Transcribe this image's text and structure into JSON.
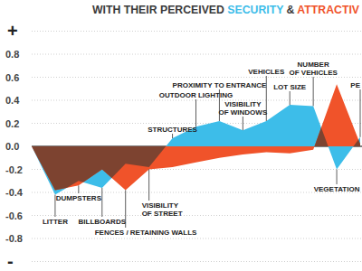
{
  "chart_data": {
    "type": "area",
    "title": "WITH THEIR PERCEIVED SECURITY & ATTRACTIV",
    "categories": [
      null,
      "LITTER",
      "DUMPSTERS",
      "BILLBOARDS",
      "FENCES / RETAINING WALLS",
      "VISIBILITY OF STREET",
      "STRUCTURES",
      "OUTDOOR LIGHTING",
      "PROXIMITY TO ENTRANCE",
      "VISIBILITY OF WINDOWS",
      "VEHICLES",
      "LOT SIZE",
      "NUMBER OF VEHICLES",
      "VEGETATION",
      "PE"
    ],
    "series": [
      {
        "name": "SECURITY",
        "color": "#3dbde9",
        "values": [
          0,
          -0.42,
          -0.3,
          -0.36,
          -0.15,
          -0.18,
          0.07,
          0.17,
          0.22,
          0.14,
          0.22,
          0.36,
          0.35,
          -0.2,
          0.08
        ]
      },
      {
        "name": "ATTRACTIV",
        "color": "#f0532a",
        "values": [
          0,
          -0.38,
          -0.34,
          -0.2,
          -0.38,
          -0.2,
          -0.18,
          -0.14,
          -0.1,
          -0.07,
          -0.05,
          -0.06,
          -0.03,
          0.54,
          0.02
        ]
      }
    ],
    "ylim": [
      -1,
      1
    ],
    "yticks": [
      {
        "value": 1,
        "label": "+"
      },
      0.8,
      0.6,
      0.4,
      0.2,
      {
        "value": 0,
        "label": "0.0"
      },
      -0.2,
      -0.4,
      -0.6,
      -0.8,
      {
        "value": -1,
        "label": "-"
      }
    ],
    "grid": true
  }
}
